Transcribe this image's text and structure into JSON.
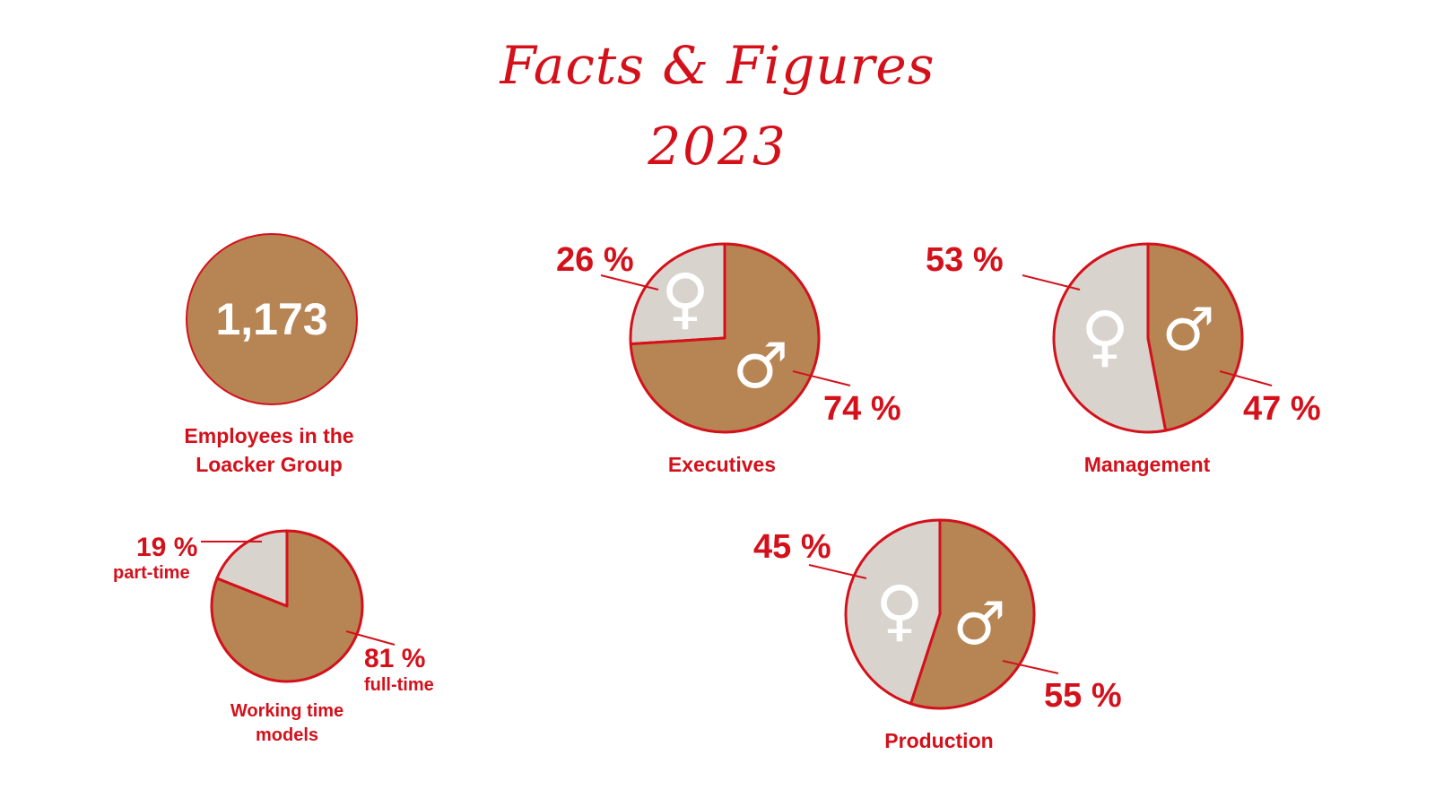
{
  "title": "Facts & Figures",
  "year": "2023",
  "colors": {
    "accent": "#d4111b",
    "male": "#b78454",
    "female": "#d8d3cd",
    "symbol": "#ffffff"
  },
  "icons": {
    "female": "female-symbol-icon",
    "male": "male-symbol-icon"
  },
  "employees": {
    "count": "1,173",
    "caption_line1": "Employees in the",
    "caption_line2": "Loacker Group"
  },
  "chart_data": [
    {
      "type": "pie",
      "title": "Executives",
      "slices": [
        {
          "category": "female",
          "value": 26,
          "label": "26 %"
        },
        {
          "category": "male",
          "value": 74,
          "label": "74 %"
        }
      ]
    },
    {
      "type": "pie",
      "title": "Management",
      "slices": [
        {
          "category": "female",
          "value": 53,
          "label": "53 %"
        },
        {
          "category": "male",
          "value": 47,
          "label": "47 %"
        }
      ]
    },
    {
      "type": "pie",
      "title": "Production",
      "slices": [
        {
          "category": "female",
          "value": 45,
          "label": "45 %"
        },
        {
          "category": "male",
          "value": 55,
          "label": "55 %"
        }
      ]
    },
    {
      "type": "pie",
      "title": "Working time models",
      "title_line1": "Working time",
      "title_line2": "models",
      "slices": [
        {
          "category": "part-time",
          "value": 19,
          "label": "19 %",
          "sublabel": "part-time"
        },
        {
          "category": "full-time",
          "value": 81,
          "label": "81 %",
          "sublabel": "full-time"
        }
      ]
    }
  ]
}
